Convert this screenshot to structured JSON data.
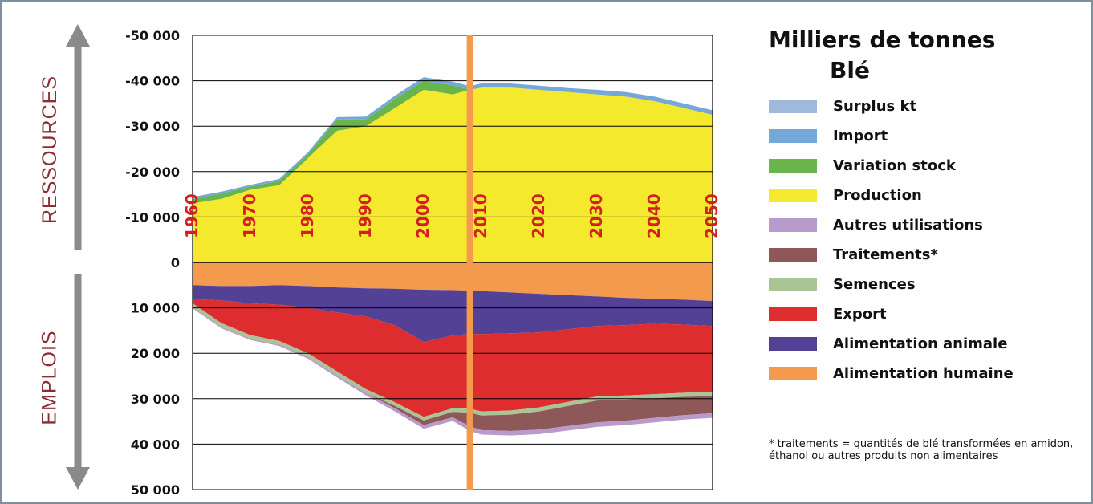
{
  "chart_data": {
    "type": "area",
    "title": "Milliers de tonnes",
    "subtitle": "Blé",
    "xlabel": "",
    "y_labels": {
      "top": "RESSOURCES",
      "bottom": "EMPLOIS"
    },
    "x_ticks": [
      "1960",
      "1970",
      "1980",
      "1990",
      "2000",
      "2010",
      "2020",
      "2030",
      "2040",
      "2050"
    ],
    "y_ticks": [
      "-50 000",
      "-40 000",
      "-30 000",
      "-20 000",
      "-10 000",
      "0",
      "10 000",
      "20 000",
      "30 000",
      "40 000",
      "50 000"
    ],
    "ylim": [
      -50000,
      50000
    ],
    "xlim": [
      1960,
      2050
    ],
    "marker_year": 2008,
    "legend_position": "right",
    "x": [
      1960,
      1965,
      1970,
      1975,
      1980,
      1985,
      1990,
      1995,
      2000,
      2005,
      2008,
      2010,
      2015,
      2020,
      2025,
      2030,
      2035,
      2040,
      2045,
      2050
    ],
    "resources": [
      {
        "name": "Production",
        "color": "#f4e92c",
        "values": [
          13000,
          14000,
          16000,
          17000,
          23000,
          29000,
          30000,
          34000,
          38000,
          37000,
          38000,
          38500,
          38500,
          38000,
          37500,
          37000,
          36500,
          35500,
          34000,
          32500
        ]
      },
      {
        "name": "Variation stock",
        "color": "#6ab44c",
        "values": [
          1000,
          1200,
          700,
          1000,
          800,
          2500,
          1500,
          2000,
          2000,
          2000,
          0,
          0,
          0,
          0,
          0,
          0,
          0,
          0,
          0,
          0
        ]
      },
      {
        "name": "Import",
        "color": "#75a7d8",
        "values": [
          400,
          400,
          400,
          400,
          500,
          500,
          600,
          700,
          800,
          800,
          800,
          900,
          900,
          900,
          900,
          1000,
          1000,
          1000,
          1000,
          1000
        ]
      },
      {
        "name": "Surplus kt",
        "color": "#9fb8dc",
        "values": [
          0,
          0,
          0,
          0,
          0,
          0,
          0,
          0,
          0,
          0,
          0,
          0,
          0,
          0,
          0,
          0,
          0,
          0,
          0,
          0
        ]
      }
    ],
    "uses": [
      {
        "name": "Alimentation humaine",
        "color": "#f39a4d",
        "values": [
          5000,
          5200,
          5200,
          5000,
          5200,
          5500,
          5700,
          5800,
          6000,
          6100,
          6200,
          6300,
          6600,
          6900,
          7200,
          7500,
          7800,
          8000,
          8200,
          8500
        ]
      },
      {
        "name": "Alimentation animale",
        "color": "#534196",
        "values": [
          3000,
          3200,
          3800,
          4300,
          4800,
          5500,
          6200,
          8000,
          11500,
          10000,
          9500,
          9500,
          9000,
          8500,
          7500,
          6500,
          6000,
          5500,
          5500,
          5500
        ]
      },
      {
        "name": "Export",
        "color": "#dd2d2f",
        "values": [
          1000,
          5000,
          7000,
          8000,
          10000,
          13000,
          16000,
          17000,
          16500,
          16000,
          16500,
          17000,
          17000,
          16500,
          16000,
          15500,
          15500,
          15500,
          15000,
          14500
        ]
      },
      {
        "name": "Semences",
        "color": "#a9c495",
        "values": [
          800,
          800,
          800,
          800,
          800,
          800,
          800,
          800,
          800,
          800,
          900,
          900,
          900,
          900,
          900,
          900,
          900,
          900,
          900,
          900
        ]
      },
      {
        "name": "Traitements*",
        "color": "#8e5758",
        "values": [
          0,
          0,
          0,
          0,
          0,
          0,
          0,
          500,
          1000,
          1200,
          3000,
          3200,
          3600,
          4000,
          4400,
          4800,
          4600,
          4300,
          4000,
          3800
        ]
      },
      {
        "name": "Autres utilisations",
        "color": "#b99bcb",
        "values": [
          300,
          300,
          300,
          300,
          400,
          500,
          600,
          700,
          800,
          800,
          1000,
          1000,
          1000,
          1000,
          1000,
          1000,
          1000,
          1000,
          1000,
          1000
        ]
      }
    ]
  },
  "legend": {
    "items": [
      {
        "label": "Surplus kt",
        "color": "#9fb8dc"
      },
      {
        "label": "Import",
        "color": "#75a7d8"
      },
      {
        "label": "Variation stock",
        "color": "#6ab44c"
      },
      {
        "label": "Production",
        "color": "#f4e92c"
      },
      {
        "label": "Autres utilisations",
        "color": "#b99bcb"
      },
      {
        "label": "Traitements*",
        "color": "#8e5758"
      },
      {
        "label": "Semences",
        "color": "#a9c495"
      },
      {
        "label": "Export",
        "color": "#dd2d2f"
      },
      {
        "label": "Alimentation animale",
        "color": "#534196"
      },
      {
        "label": "Alimentation humaine",
        "color": "#f39a4d"
      }
    ]
  },
  "footnote": "* traitements = quantités de blé transformées en amidon, éthanol ou autres produits non alimentaires",
  "colors": {
    "marker": "#f39a4d",
    "tick_year": "#d21f1f",
    "side_label": "#8b2e34",
    "arrow": "#8a8a8a"
  }
}
